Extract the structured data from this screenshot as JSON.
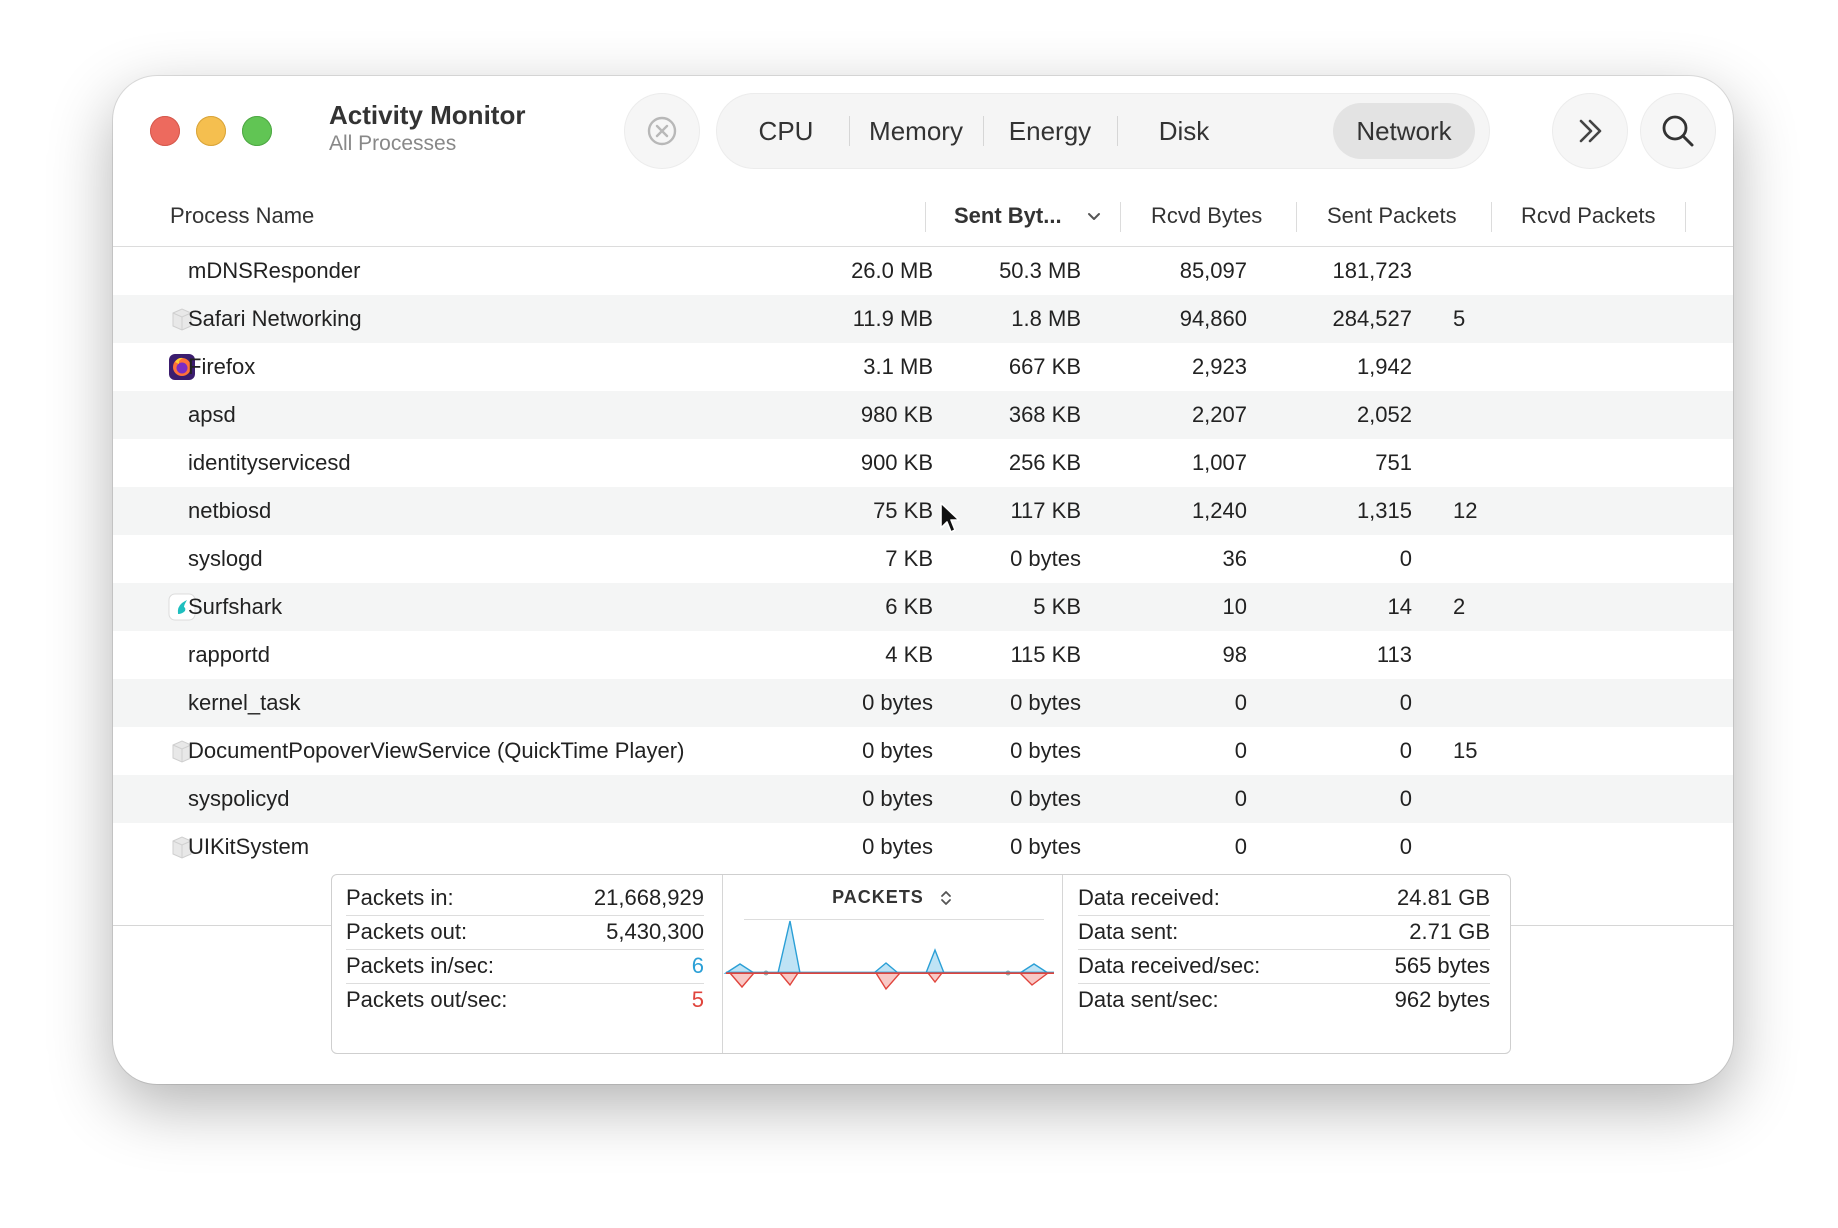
{
  "window": {
    "title": "Activity Monitor",
    "subtitle": "All Processes"
  },
  "toolbar": {
    "stop_icon": "stop-process-icon",
    "more_icon": "chevron-double-right-icon",
    "search_icon": "search-icon",
    "tabs": [
      {
        "label": "CPU",
        "selected": false
      },
      {
        "label": "Memory",
        "selected": false
      },
      {
        "label": "Energy",
        "selected": false
      },
      {
        "label": "Disk",
        "selected": false
      },
      {
        "label": "Network",
        "selected": true
      }
    ]
  },
  "table": {
    "columns": {
      "process_name": "Process Name",
      "sent_bytes": "Sent Byt...",
      "rcvd_bytes": "Rcvd Bytes",
      "sent_packets": "Sent Packets",
      "rcvd_packets": "Rcvd Packets"
    },
    "sort_icon": "chevron-down-icon",
    "rows": [
      {
        "name": "mDNSResponder",
        "icon": "",
        "sent_bytes": "26.0 MB",
        "rcvd_bytes": "50.3 MB",
        "sent_packets": "85,097",
        "rcvd_packets": "181,723",
        "extra": ""
      },
      {
        "name": "Safari Networking",
        "icon": "generic-app-icon",
        "sent_bytes": "11.9 MB",
        "rcvd_bytes": "1.8 MB",
        "sent_packets": "94,860",
        "rcvd_packets": "284,527",
        "extra": "5"
      },
      {
        "name": "Firefox",
        "icon": "firefox-icon",
        "sent_bytes": "3.1 MB",
        "rcvd_bytes": "667 KB",
        "sent_packets": "2,923",
        "rcvd_packets": "1,942",
        "extra": ""
      },
      {
        "name": "apsd",
        "icon": "",
        "sent_bytes": "980 KB",
        "rcvd_bytes": "368 KB",
        "sent_packets": "2,207",
        "rcvd_packets": "2,052",
        "extra": ""
      },
      {
        "name": "identityservicesd",
        "icon": "",
        "sent_bytes": "900 KB",
        "rcvd_bytes": "256 KB",
        "sent_packets": "1,007",
        "rcvd_packets": "751",
        "extra": ""
      },
      {
        "name": "netbiosd",
        "icon": "",
        "sent_bytes": "75 KB",
        "rcvd_bytes": "117 KB",
        "sent_packets": "1,240",
        "rcvd_packets": "1,315",
        "extra": "12"
      },
      {
        "name": "syslogd",
        "icon": "",
        "sent_bytes": "7 KB",
        "rcvd_bytes": "0 bytes",
        "sent_packets": "36",
        "rcvd_packets": "0",
        "extra": ""
      },
      {
        "name": "Surfshark",
        "icon": "surfshark-icon",
        "sent_bytes": "6 KB",
        "rcvd_bytes": "5 KB",
        "sent_packets": "10",
        "rcvd_packets": "14",
        "extra": "2"
      },
      {
        "name": "rapportd",
        "icon": "",
        "sent_bytes": "4 KB",
        "rcvd_bytes": "115 KB",
        "sent_packets": "98",
        "rcvd_packets": "113",
        "extra": ""
      },
      {
        "name": "kernel_task",
        "icon": "",
        "sent_bytes": "0 bytes",
        "rcvd_bytes": "0 bytes",
        "sent_packets": "0",
        "rcvd_packets": "0",
        "extra": ""
      },
      {
        "name": "DocumentPopoverViewService (QuickTime Player)",
        "icon": "generic-app-icon",
        "sent_bytes": "0 bytes",
        "rcvd_bytes": "0 bytes",
        "sent_packets": "0",
        "rcvd_packets": "0",
        "extra": "15"
      },
      {
        "name": "syspolicyd",
        "icon": "",
        "sent_bytes": "0 bytes",
        "rcvd_bytes": "0 bytes",
        "sent_packets": "0",
        "rcvd_packets": "0",
        "extra": ""
      },
      {
        "name": "UIKitSystem",
        "icon": "generic-app-icon",
        "sent_bytes": "0 bytes",
        "rcvd_bytes": "0 bytes",
        "sent_packets": "0",
        "rcvd_packets": "0",
        "extra": ""
      }
    ]
  },
  "summary": {
    "left": [
      {
        "label": "Packets in:",
        "value": "21,668,929",
        "color": ""
      },
      {
        "label": "Packets out:",
        "value": "5,430,300",
        "color": ""
      },
      {
        "label": "Packets in/sec:",
        "value": "6",
        "color": "#2a9fd6"
      },
      {
        "label": "Packets out/sec:",
        "value": "5",
        "color": "#e0443c"
      }
    ],
    "graph_title": "PACKETS",
    "graph_toggle_icon": "chevron-up-down-icon",
    "right": [
      {
        "label": "Data received:",
        "value": "24.81 GB"
      },
      {
        "label": "Data sent:",
        "value": "2.71 GB"
      },
      {
        "label": "Data received/sec:",
        "value": "565 bytes"
      },
      {
        "label": "Data sent/sec:",
        "value": "962 bytes"
      }
    ]
  },
  "colors": {
    "packets_in": "#2a9fd6",
    "packets_out": "#e0443c",
    "selected_tab": "#e3e3e3"
  },
  "cursor_icon": "mouse-pointer-icon"
}
